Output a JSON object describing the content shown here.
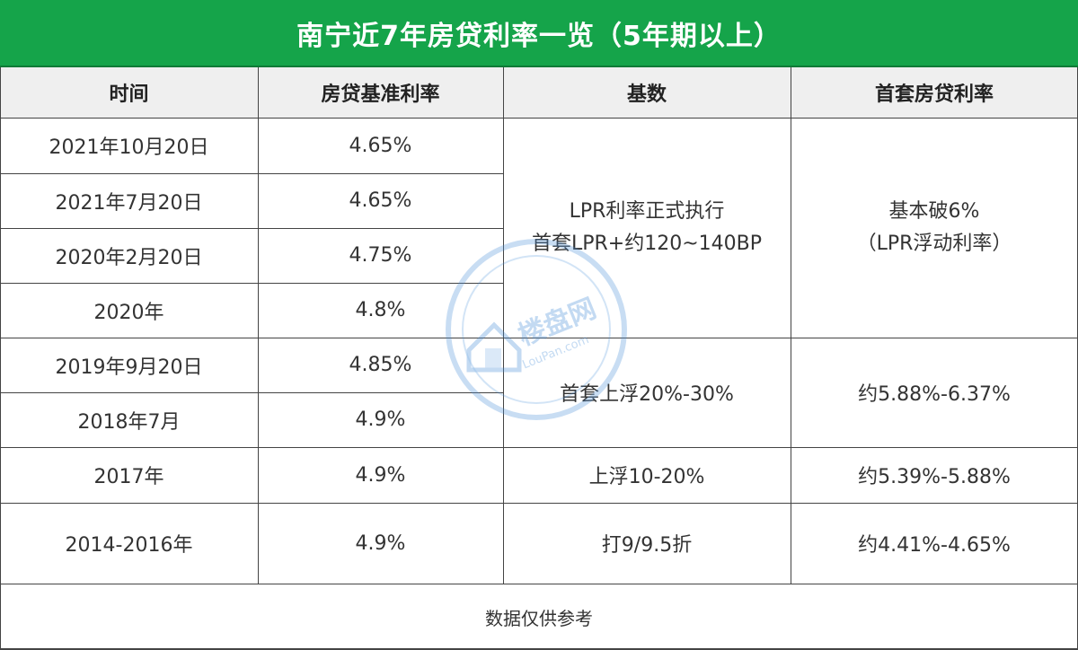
{
  "title": "南宁近7年房贷利率一览（5年期以上）",
  "headers": {
    "time": "时间",
    "base_rate": "房贷基准利率",
    "basis": "基数",
    "first_home_rate": "首套房贷利率"
  },
  "rows": [
    {
      "time": "2021年10月20日",
      "base_rate": "4.65%"
    },
    {
      "time": "2021年7月20日",
      "base_rate": "4.65%"
    },
    {
      "time": "2020年2月20日",
      "base_rate": "4.75%"
    },
    {
      "time": "2020年",
      "base_rate": "4.8%"
    },
    {
      "time": "2019年9月20日",
      "base_rate": "4.85%"
    },
    {
      "time": "2018年7月",
      "base_rate": "4.9%"
    },
    {
      "time": "2017年",
      "base_rate": "4.9%"
    },
    {
      "time": "2014-2016年",
      "base_rate": "4.9%"
    }
  ],
  "groups": {
    "lpr": {
      "basis_line1": "LPR利率正式执行",
      "basis_line2": "首套LPR+约120~140BP",
      "rate_line1": "基本破6%",
      "rate_line2": "（LPR浮动利率）"
    },
    "float30": {
      "basis": "首套上浮20%-30%",
      "rate": "约5.88%-6.37%"
    },
    "float20": {
      "basis": "上浮10-20%",
      "rate": "约5.39%-5.88%"
    },
    "discount": {
      "basis": "打9/9.5折",
      "rate": "约4.41%-4.65%"
    }
  },
  "footer": "数据仅供参考",
  "watermark": {
    "text": "楼盘网",
    "sub": "LouPan.com",
    "icon": "house-logo-icon"
  },
  "colors": {
    "title_bg": "#15a44a",
    "header_bg": "#efefef",
    "grid": "#444444",
    "watermark": "#4a90d9"
  }
}
